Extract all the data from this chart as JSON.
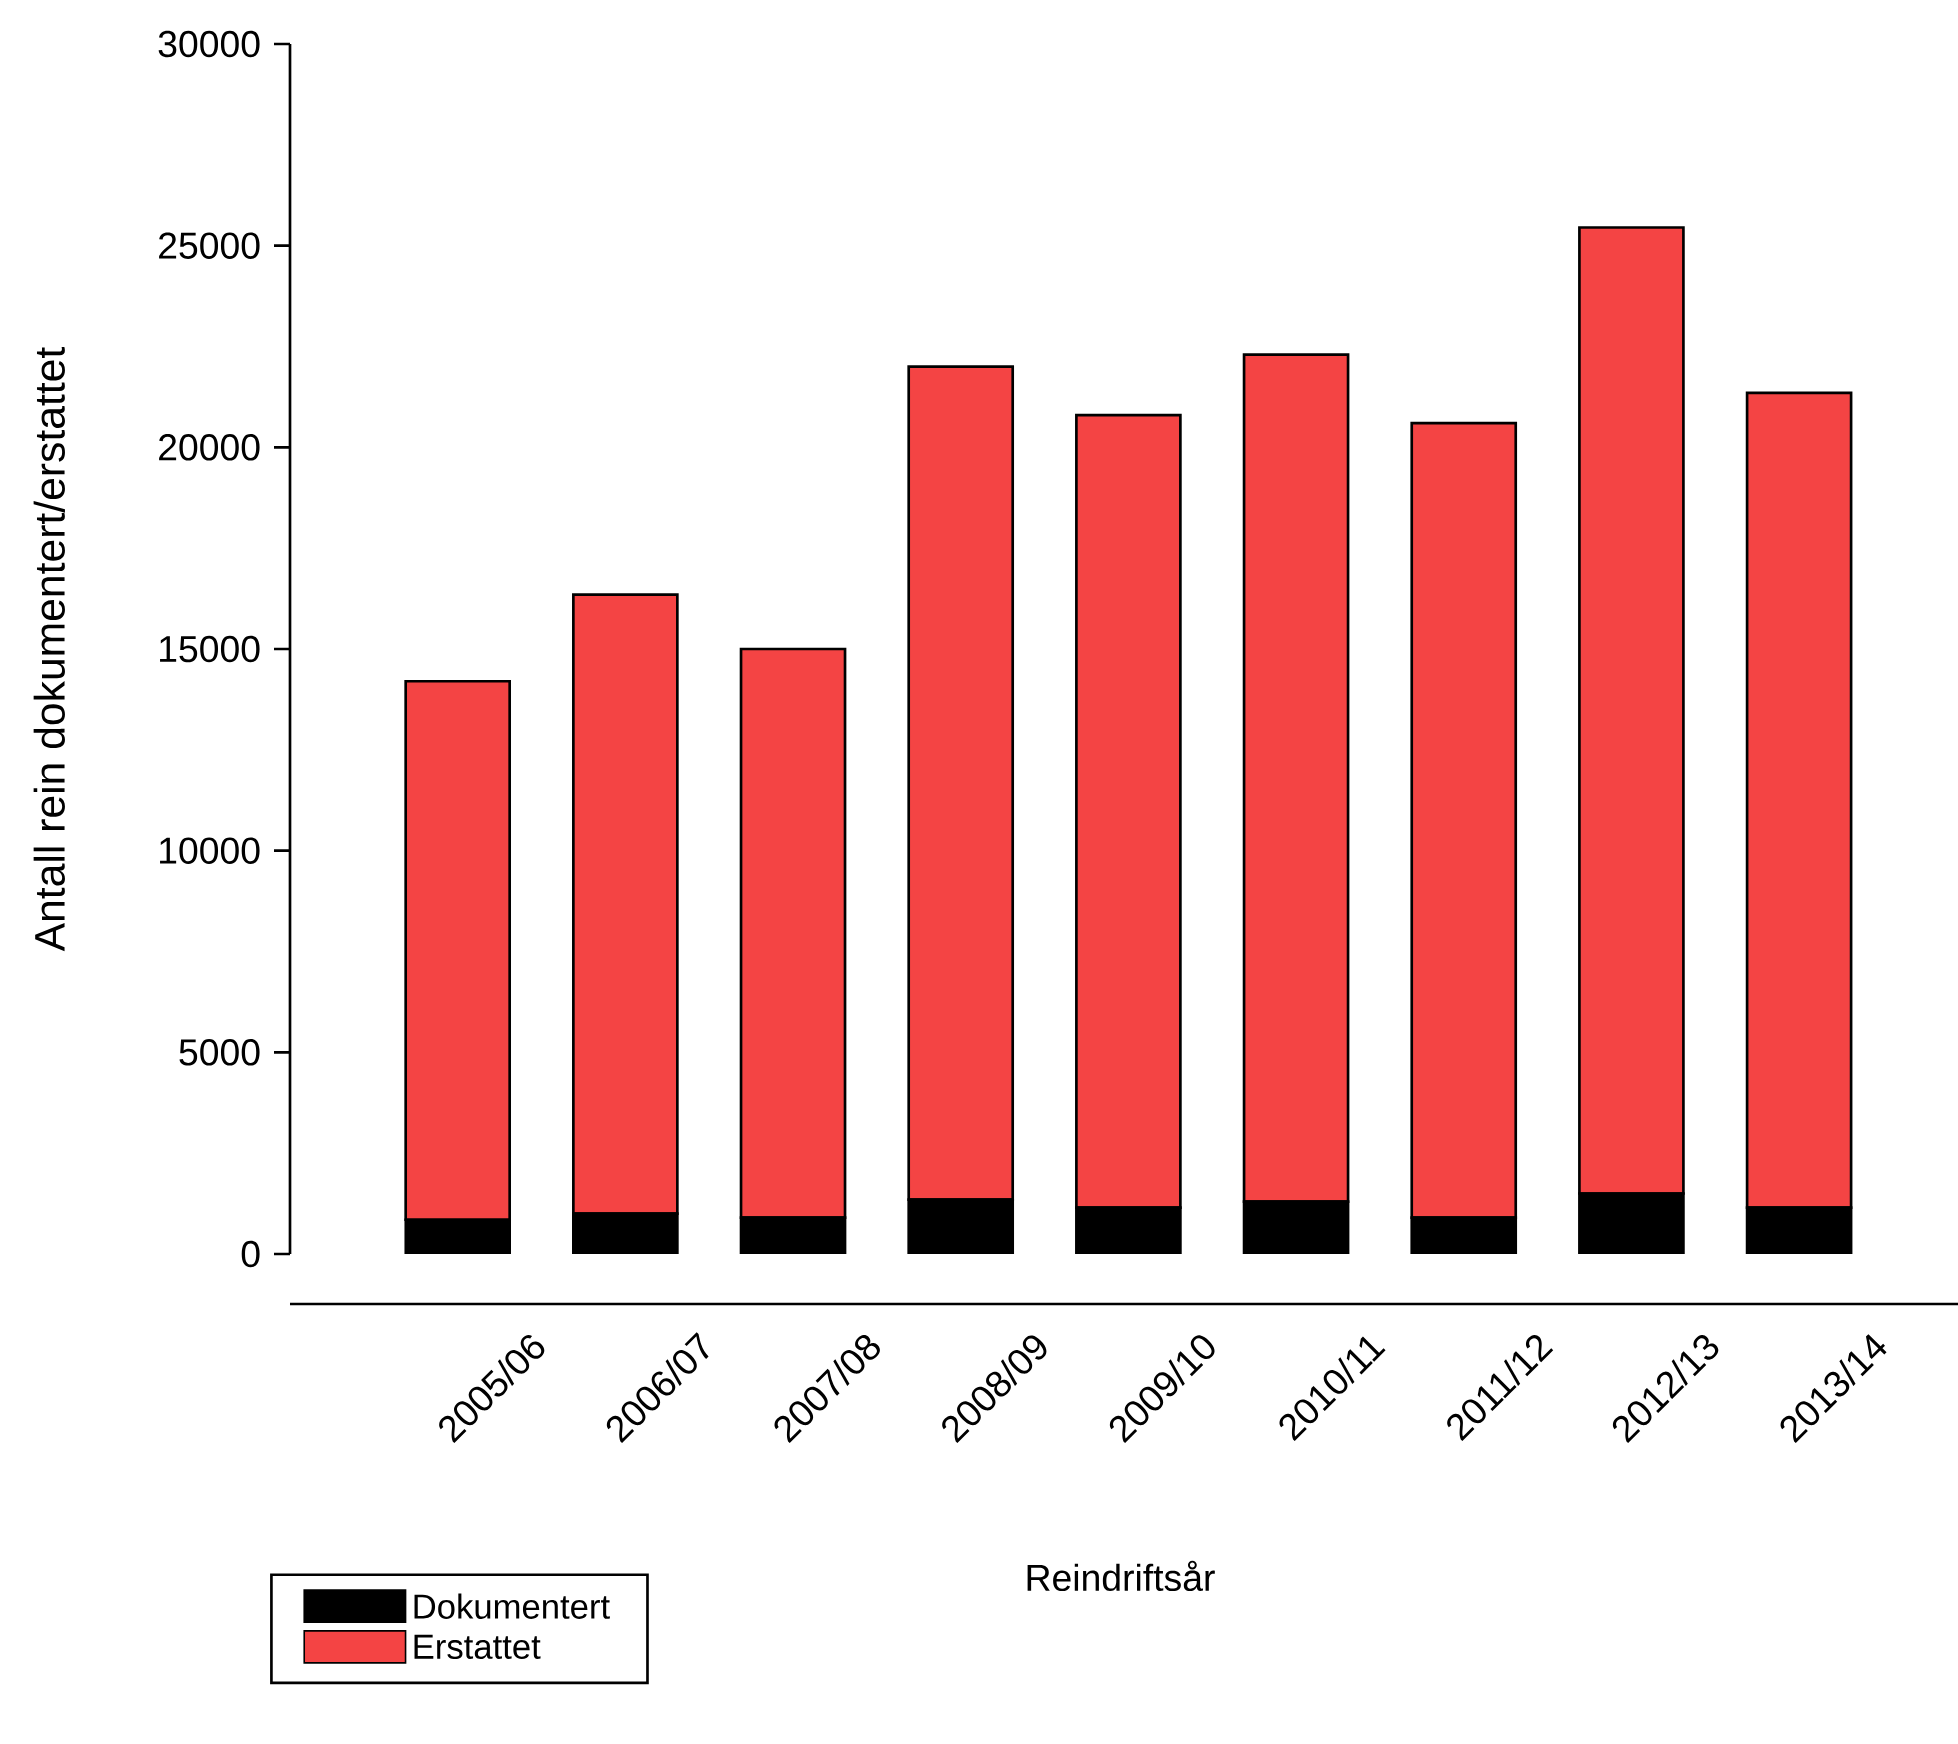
{
  "chart_data": {
    "type": "bar",
    "stacked": true,
    "xlabel": "Reindriftsår",
    "ylabel": "Antall rein dokumentert/erstattet",
    "categories": [
      "2005/06",
      "2006/07",
      "2007/08",
      "2008/09",
      "2009/10",
      "2010/11",
      "2011/12",
      "2012/13",
      "2013/14"
    ],
    "series": [
      {
        "name": "Dokumentert",
        "color": "#000000",
        "values": [
          850,
          1000,
          900,
          1350,
          1150,
          1300,
          900,
          1500,
          1150
        ]
      },
      {
        "name": "Erstattet",
        "color": "#f44444",
        "values": [
          13350,
          15350,
          14100,
          20650,
          19650,
          21000,
          19700,
          23950,
          20200
        ]
      }
    ],
    "ylim": [
      0,
      30000
    ],
    "yticks": [
      0,
      5000,
      10000,
      15000,
      20000,
      25000,
      30000
    ],
    "grid": false,
    "legend": "bottom left"
  }
}
